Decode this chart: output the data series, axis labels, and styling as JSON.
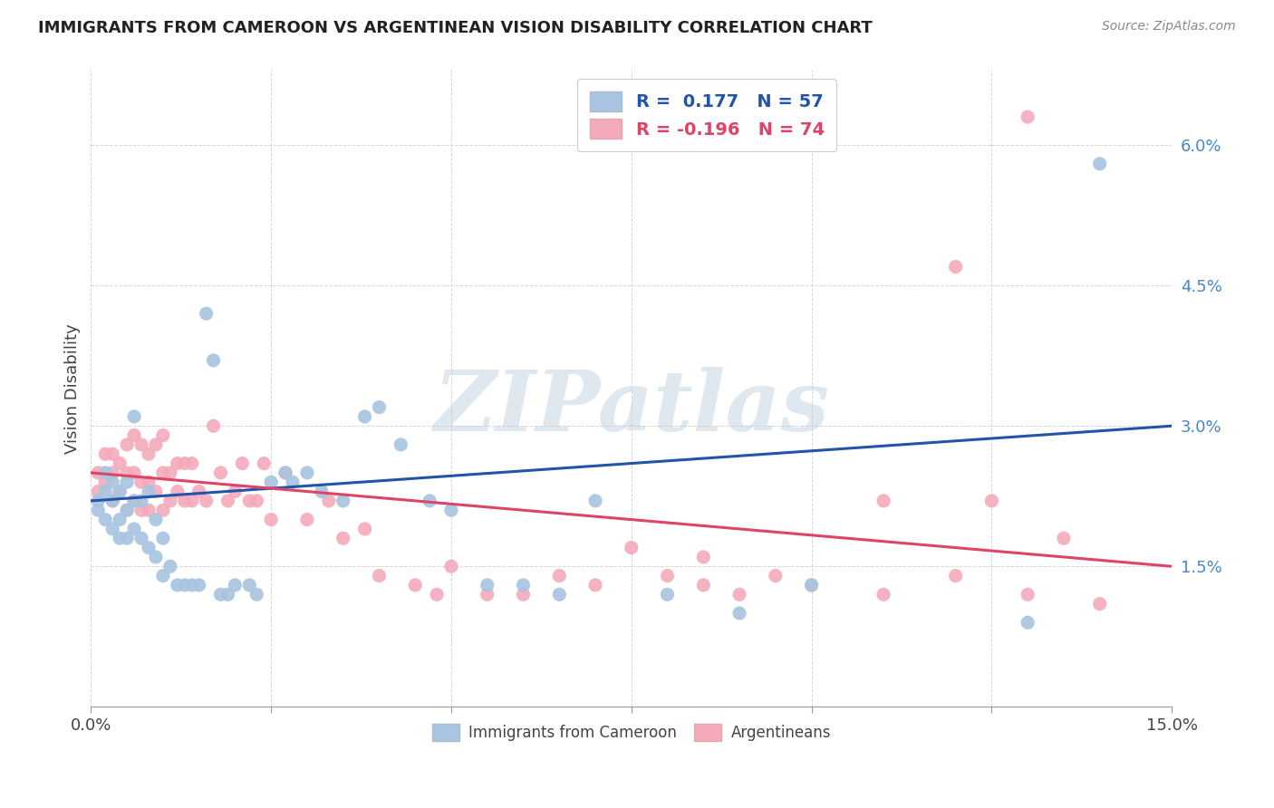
{
  "title": "IMMIGRANTS FROM CAMEROON VS ARGENTINEAN VISION DISABILITY CORRELATION CHART",
  "source": "Source: ZipAtlas.com",
  "ylabel": "Vision Disability",
  "xlim": [
    0.0,
    0.15
  ],
  "ylim": [
    0.0,
    0.068
  ],
  "xticks": [
    0.0,
    0.025,
    0.05,
    0.075,
    0.1,
    0.125,
    0.15
  ],
  "xtick_labels": [
    "0.0%",
    "",
    "",
    "",
    "",
    "",
    "15.0%"
  ],
  "yticks": [
    0.0,
    0.015,
    0.03,
    0.045,
    0.06
  ],
  "ytick_labels": [
    "",
    "1.5%",
    "3.0%",
    "4.5%",
    "6.0%"
  ],
  "blue_color": "#A8C4E0",
  "pink_color": "#F4AABB",
  "blue_line_color": "#2255AA",
  "pink_line_color": "#DD4466",
  "blue_line_x0": 0.0,
  "blue_line_y0": 0.022,
  "blue_line_x1": 0.15,
  "blue_line_y1": 0.03,
  "pink_line_x0": 0.0,
  "pink_line_y0": 0.025,
  "pink_line_x1": 0.15,
  "pink_line_y1": 0.015,
  "blue_scatter_x": [
    0.001,
    0.001,
    0.002,
    0.002,
    0.002,
    0.003,
    0.003,
    0.003,
    0.004,
    0.004,
    0.004,
    0.005,
    0.005,
    0.005,
    0.006,
    0.006,
    0.006,
    0.007,
    0.007,
    0.008,
    0.008,
    0.009,
    0.009,
    0.01,
    0.01,
    0.011,
    0.012,
    0.013,
    0.014,
    0.015,
    0.016,
    0.017,
    0.018,
    0.019,
    0.02,
    0.022,
    0.023,
    0.025,
    0.027,
    0.028,
    0.03,
    0.032,
    0.035,
    0.038,
    0.04,
    0.043,
    0.047,
    0.05,
    0.055,
    0.06,
    0.065,
    0.07,
    0.08,
    0.09,
    0.1,
    0.13,
    0.14
  ],
  "blue_scatter_y": [
    0.022,
    0.021,
    0.025,
    0.023,
    0.02,
    0.024,
    0.022,
    0.019,
    0.023,
    0.02,
    0.018,
    0.024,
    0.021,
    0.018,
    0.031,
    0.022,
    0.019,
    0.022,
    0.018,
    0.023,
    0.017,
    0.02,
    0.016,
    0.018,
    0.014,
    0.015,
    0.013,
    0.013,
    0.013,
    0.013,
    0.042,
    0.037,
    0.012,
    0.012,
    0.013,
    0.013,
    0.012,
    0.024,
    0.025,
    0.024,
    0.025,
    0.023,
    0.022,
    0.031,
    0.032,
    0.028,
    0.022,
    0.021,
    0.013,
    0.013,
    0.012,
    0.022,
    0.012,
    0.01,
    0.013,
    0.009,
    0.058
  ],
  "pink_scatter_x": [
    0.001,
    0.001,
    0.002,
    0.002,
    0.003,
    0.003,
    0.003,
    0.004,
    0.004,
    0.005,
    0.005,
    0.005,
    0.006,
    0.006,
    0.006,
    0.007,
    0.007,
    0.007,
    0.008,
    0.008,
    0.008,
    0.009,
    0.009,
    0.01,
    0.01,
    0.01,
    0.011,
    0.011,
    0.012,
    0.012,
    0.013,
    0.013,
    0.014,
    0.014,
    0.015,
    0.016,
    0.017,
    0.018,
    0.019,
    0.02,
    0.021,
    0.022,
    0.023,
    0.024,
    0.025,
    0.027,
    0.03,
    0.033,
    0.035,
    0.038,
    0.04,
    0.045,
    0.048,
    0.05,
    0.055,
    0.06,
    0.065,
    0.07,
    0.075,
    0.08,
    0.085,
    0.09,
    0.1,
    0.11,
    0.12,
    0.125,
    0.13,
    0.135,
    0.14,
    0.13,
    0.12,
    0.11,
    0.095,
    0.085
  ],
  "pink_scatter_y": [
    0.025,
    0.023,
    0.027,
    0.024,
    0.027,
    0.025,
    0.022,
    0.026,
    0.023,
    0.028,
    0.025,
    0.021,
    0.029,
    0.025,
    0.022,
    0.028,
    0.024,
    0.021,
    0.027,
    0.024,
    0.021,
    0.028,
    0.023,
    0.029,
    0.025,
    0.021,
    0.025,
    0.022,
    0.026,
    0.023,
    0.026,
    0.022,
    0.026,
    0.022,
    0.023,
    0.022,
    0.03,
    0.025,
    0.022,
    0.023,
    0.026,
    0.022,
    0.022,
    0.026,
    0.02,
    0.025,
    0.02,
    0.022,
    0.018,
    0.019,
    0.014,
    0.013,
    0.012,
    0.015,
    0.012,
    0.012,
    0.014,
    0.013,
    0.017,
    0.014,
    0.016,
    0.012,
    0.013,
    0.022,
    0.047,
    0.022,
    0.063,
    0.018,
    0.011,
    0.012,
    0.014,
    0.012,
    0.014,
    0.013
  ],
  "watermark_text": "ZIPatlas",
  "grid_color": "#CCCCCC",
  "background_color": "#FFFFFF"
}
